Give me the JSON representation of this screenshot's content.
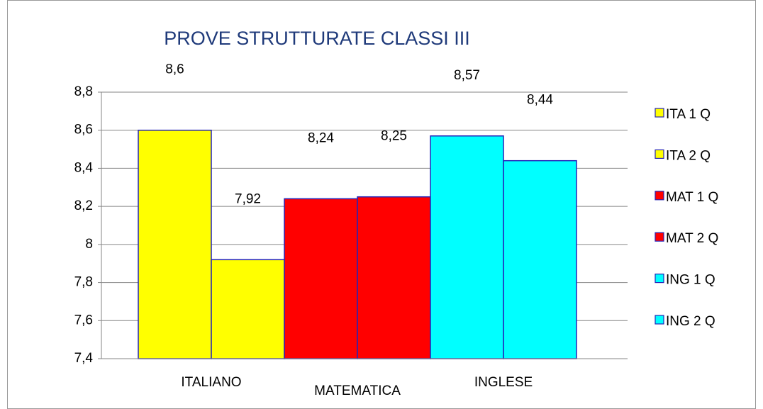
{
  "chart_data": {
    "type": "bar",
    "title": "PROVE STRUTTURATE CLASSI III",
    "categories": [
      "ITALIANO",
      "MATEMATICA",
      "INGLESE"
    ],
    "series": [
      {
        "name": "ITA 1 Q",
        "color": "#ffff00",
        "values": [
          8.6,
          null,
          null
        ],
        "value_labels": [
          "8,6",
          null,
          null
        ]
      },
      {
        "name": "ITA 2 Q",
        "color": "#ffff00",
        "values": [
          7.92,
          null,
          null
        ],
        "value_labels": [
          "7,92",
          null,
          null
        ]
      },
      {
        "name": "MAT 1 Q",
        "color": "#ff0000",
        "values": [
          null,
          8.24,
          null
        ],
        "value_labels": [
          null,
          "8,24",
          null
        ]
      },
      {
        "name": "MAT 2 Q",
        "color": "#ff0000",
        "values": [
          null,
          8.25,
          null
        ],
        "value_labels": [
          null,
          "8,25",
          null
        ]
      },
      {
        "name": "ING 1 Q",
        "color": "#00ffff",
        "values": [
          null,
          null,
          8.57
        ],
        "value_labels": [
          null,
          null,
          "8,57"
        ]
      },
      {
        "name": "ING 2 Q",
        "color": "#00ffff",
        "values": [
          null,
          null,
          8.44
        ],
        "value_labels": [
          null,
          null,
          "8,44"
        ]
      }
    ],
    "ylim": [
      7.4,
      8.8
    ],
    "yticks": [
      {
        "value": 7.4,
        "label": "7,4"
      },
      {
        "value": 7.6,
        "label": "7,6"
      },
      {
        "value": 7.8,
        "label": "7,8"
      },
      8,
      {
        "value": 8.2,
        "label": "8,2"
      },
      {
        "value": 8.4,
        "label": "8,4"
      },
      {
        "value": 8.6,
        "label": "8,6"
      },
      {
        "value": 8.8,
        "label": "8,8"
      }
    ],
    "grid": true,
    "legend": "right"
  }
}
